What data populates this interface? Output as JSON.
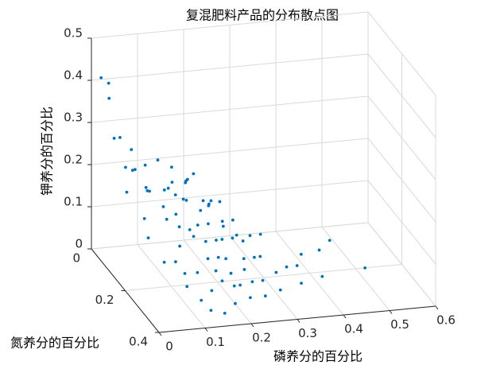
{
  "chart_data": {
    "type": "scatter3d",
    "title": "复混肥料产品的分布散点图",
    "xlabel": "磷养分的百分比",
    "ylabel": "氮养分的百分比",
    "zlabel": "钾养分的百分比",
    "xlim": [
      0,
      0.6
    ],
    "xticks": [
      0,
      0.1,
      0.2,
      0.3,
      0.4,
      0.5,
      0.6
    ],
    "ylim": [
      0,
      0.4
    ],
    "yticks": [
      0,
      0.2,
      0.4
    ],
    "zlim": [
      0,
      0.5
    ],
    "zticks": [
      0,
      0.1,
      0.2,
      0.3,
      0.4,
      0.5
    ],
    "grid": true,
    "series": [
      {
        "color": "#0072bd",
        "x": [
          0.01,
          0.03,
          0.02,
          0.02,
          0.04,
          0.05,
          0.03,
          0.06,
          0.08,
          0.1,
          0.12,
          0.07,
          0.09,
          0.11,
          0.14,
          0.16,
          0.13,
          0.15,
          0.18,
          0.2,
          0.22,
          0.1,
          0.08,
          0.12,
          0.15,
          0.18,
          0.2,
          0.25,
          0.28,
          0.3,
          0.26,
          0.24,
          0.2,
          0.17,
          0.14,
          0.1,
          0.06,
          0.05,
          0.07,
          0.09,
          0.11,
          0.14,
          0.17,
          0.2,
          0.22,
          0.25,
          0.28,
          0.32,
          0.35,
          0.38,
          0.4,
          0.45,
          0.42,
          0.52,
          0.48,
          0.36,
          0.3,
          0.26,
          0.22,
          0.18,
          0.15,
          0.12,
          0.13,
          0.16,
          0.19,
          0.11,
          0.09,
          0.12,
          0.15,
          0.18,
          0.21,
          0.24,
          0.27,
          0.3,
          0.33,
          0.23,
          0.26,
          0.19,
          0.08,
          0.04,
          0.06,
          0.13,
          0.17,
          0.2,
          0.16,
          0.24,
          0.1,
          0.14,
          0.21,
          0.27
        ],
        "y": [
          0.03,
          0.02,
          0.05,
          0.08,
          0.06,
          0.1,
          0.12,
          0.08,
          0.1,
          0.12,
          0.15,
          0.14,
          0.18,
          0.2,
          0.18,
          0.12,
          0.1,
          0.22,
          0.2,
          0.15,
          0.18,
          0.25,
          0.28,
          0.3,
          0.28,
          0.26,
          0.25,
          0.22,
          0.2,
          0.18,
          0.15,
          0.12,
          0.1,
          0.08,
          0.05,
          0.05,
          0.15,
          0.2,
          0.24,
          0.32,
          0.35,
          0.33,
          0.31,
          0.3,
          0.28,
          0.27,
          0.25,
          0.22,
          0.2,
          0.18,
          0.15,
          0.12,
          0.22,
          0.2,
          0.1,
          0.26,
          0.3,
          0.32,
          0.34,
          0.36,
          0.38,
          0.38,
          0.25,
          0.24,
          0.22,
          0.22,
          0.2,
          0.17,
          0.15,
          0.17,
          0.2,
          0.18,
          0.16,
          0.12,
          0.1,
          0.08,
          0.05,
          0.05,
          0.04,
          0.1,
          0.18,
          0.12,
          0.14,
          0.28,
          0.3,
          0.25,
          0.28,
          0.2,
          0.12,
          0.1
        ],
        "z": [
          0.42,
          0.4,
          0.38,
          0.3,
          0.29,
          0.28,
          0.25,
          0.22,
          0.24,
          0.26,
          0.22,
          0.2,
          0.18,
          0.17,
          0.19,
          0.2,
          0.18,
          0.15,
          0.14,
          0.16,
          0.12,
          0.12,
          0.1,
          0.08,
          0.1,
          0.09,
          0.08,
          0.06,
          0.05,
          0.04,
          0.08,
          0.1,
          0.12,
          0.14,
          0.15,
          0.16,
          0.14,
          0.12,
          0.08,
          0.06,
          0.04,
          0.05,
          0.06,
          0.04,
          0.03,
          0.03,
          0.02,
          0.02,
          0.02,
          0.01,
          0.02,
          0.01,
          0.0,
          0.0,
          0.02,
          0.01,
          0.02,
          0.02,
          0.03,
          0.03,
          0.02,
          0.03,
          0.14,
          0.12,
          0.11,
          0.15,
          0.16,
          0.2,
          0.22,
          0.18,
          0.1,
          0.09,
          0.07,
          0.06,
          0.05,
          0.13,
          0.11,
          0.17,
          0.2,
          0.18,
          0.22,
          0.24,
          0.23,
          0.06,
          0.08,
          0.05,
          0.07,
          0.13,
          0.14,
          0.09
        ]
      }
    ]
  }
}
